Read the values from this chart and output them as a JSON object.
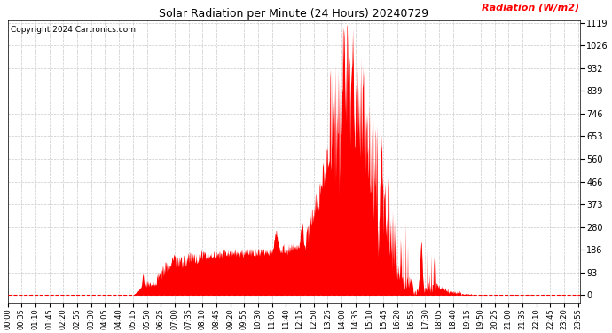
{
  "title": "Solar Radiation per Minute (24 Hours) 20240729",
  "copyright_text": "Copyright 2024 Cartronics.com",
  "ylabel": "Radiation (W/m2)",
  "ylabel_color": "#ff0000",
  "copyright_color": "#000000",
  "title_color": "#000000",
  "background_color": "#ffffff",
  "fill_color": "#ff0000",
  "baseline_color": "#ff0000",
  "grid_color": "#bbbbbb",
  "yticks": [
    0.0,
    93.2,
    186.5,
    279.8,
    373.0,
    466.2,
    559.5,
    652.8,
    746.0,
    839.2,
    932.5,
    1025.8,
    1119.0
  ],
  "total_minutes": 1440,
  "xtick_interval": 35,
  "ymax": 1119.0,
  "ymin": -30.0
}
